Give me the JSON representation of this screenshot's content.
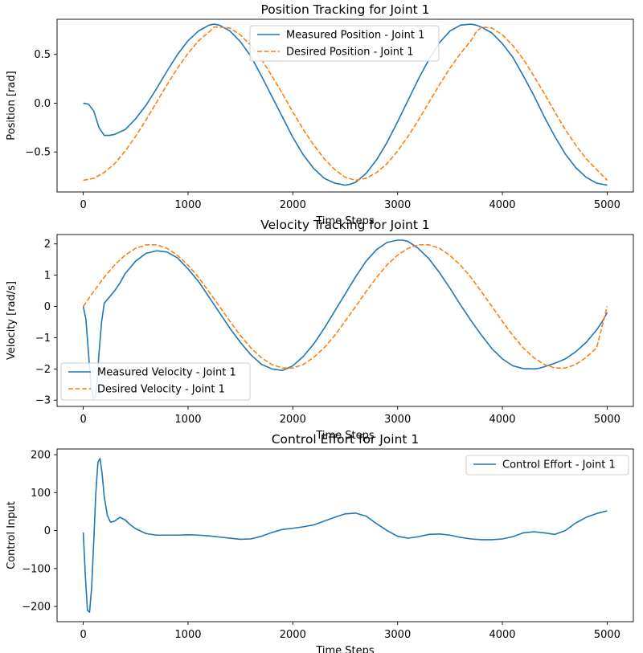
{
  "chart_data": [
    {
      "type": "line",
      "title": "Position Tracking for Joint 1",
      "xlabel": "Time Steps",
      "ylabel": "Position [rad]",
      "xlim": [
        -250,
        5250
      ],
      "ylim": [
        -0.91,
        0.86
      ],
      "xticks": [
        0,
        1000,
        2000,
        3000,
        4000,
        5000
      ],
      "xtick_labels": [
        "0",
        "1000",
        "2000",
        "3000",
        "4000",
        "5000"
      ],
      "yticks": [
        0.5,
        0.0,
        -0.5
      ],
      "ytick_labels": [
        "0.5",
        "0.0",
        "−0.5"
      ],
      "legend_loc": "upper-center",
      "series": [
        {
          "name": "Measured Position - Joint 1",
          "color": "#1f77b4",
          "style": "solid",
          "x": [
            0,
            50,
            100,
            150,
            200,
            250,
            300,
            400,
            500,
            600,
            700,
            800,
            900,
            1000,
            1100,
            1200,
            1250,
            1300,
            1400,
            1500,
            1600,
            1700,
            1800,
            1900,
            2000,
            2100,
            2200,
            2300,
            2400,
            2500,
            2550,
            2600,
            2700,
            2800,
            2900,
            3000,
            3100,
            3200,
            3300,
            3400,
            3500,
            3600,
            3700,
            3750,
            3800,
            3900,
            4000,
            4100,
            4200,
            4300,
            4400,
            4500,
            4600,
            4700,
            4800,
            4900,
            5000
          ],
          "y": [
            0.0,
            -0.01,
            -0.08,
            -0.25,
            -0.33,
            -0.33,
            -0.32,
            -0.27,
            -0.16,
            -0.02,
            0.15,
            0.33,
            0.5,
            0.64,
            0.74,
            0.8,
            0.81,
            0.8,
            0.74,
            0.63,
            0.48,
            0.28,
            0.07,
            -0.14,
            -0.35,
            -0.53,
            -0.67,
            -0.77,
            -0.82,
            -0.84,
            -0.83,
            -0.81,
            -0.72,
            -0.58,
            -0.4,
            -0.19,
            0.03,
            0.25,
            0.45,
            0.62,
            0.74,
            0.8,
            0.81,
            0.8,
            0.78,
            0.72,
            0.61,
            0.47,
            0.28,
            0.08,
            -0.14,
            -0.34,
            -0.52,
            -0.66,
            -0.76,
            -0.82,
            -0.84
          ]
        },
        {
          "name": "Desired Position - Joint 1",
          "color": "#ff7f0e",
          "style": "dashed",
          "x": [
            0,
            100,
            200,
            300,
            400,
            500,
            600,
            700,
            800,
            900,
            1000,
            1100,
            1200,
            1250,
            1300,
            1400,
            1500,
            1600,
            1700,
            1800,
            1900,
            2000,
            2100,
            2200,
            2300,
            2400,
            2500,
            2600,
            2700,
            2800,
            2900,
            3000,
            3100,
            3200,
            3300,
            3400,
            3500,
            3600,
            3700,
            3750,
            3800,
            3900,
            4000,
            4100,
            4200,
            4300,
            4400,
            4500,
            4600,
            4700,
            4800,
            4900,
            5000
          ],
          "y": [
            -0.79,
            -0.77,
            -0.71,
            -0.62,
            -0.49,
            -0.34,
            -0.17,
            0.01,
            0.19,
            0.36,
            0.51,
            0.64,
            0.73,
            0.78,
            0.78,
            0.77,
            0.7,
            0.59,
            0.45,
            0.28,
            0.1,
            -0.09,
            -0.27,
            -0.43,
            -0.57,
            -0.68,
            -0.76,
            -0.79,
            -0.77,
            -0.71,
            -0.62,
            -0.49,
            -0.34,
            -0.17,
            0.01,
            0.19,
            0.36,
            0.51,
            0.64,
            0.73,
            0.78,
            0.77,
            0.7,
            0.59,
            0.45,
            0.28,
            0.1,
            -0.09,
            -0.27,
            -0.43,
            -0.57,
            -0.68,
            -0.79
          ]
        }
      ]
    },
    {
      "type": "line",
      "title": "Velocity Tracking for Joint 1",
      "xlabel": "Time Steps",
      "ylabel": "Velocity [rad/s]",
      "xlim": [
        -250,
        5250
      ],
      "ylim": [
        -3.2,
        2.3
      ],
      "xticks": [
        0,
        1000,
        2000,
        3000,
        4000,
        5000
      ],
      "xtick_labels": [
        "0",
        "1000",
        "2000",
        "3000",
        "4000",
        "5000"
      ],
      "yticks": [
        2,
        1,
        0,
        -1,
        -2,
        -3
      ],
      "ytick_labels": [
        "2",
        "1",
        "0",
        "−1",
        "−2",
        "−3"
      ],
      "legend_loc": "lower-left",
      "series": [
        {
          "name": "Measured Velocity - Joint 1",
          "color": "#1f77b4",
          "style": "solid",
          "x": [
            0,
            25,
            50,
            75,
            100,
            115,
            130,
            150,
            175,
            200,
            250,
            300,
            350,
            400,
            500,
            600,
            700,
            800,
            900,
            1000,
            1100,
            1200,
            1300,
            1400,
            1500,
            1600,
            1700,
            1800,
            1900,
            2000,
            2100,
            2200,
            2300,
            2400,
            2500,
            2600,
            2700,
            2800,
            2900,
            3000,
            3050,
            3100,
            3200,
            3300,
            3400,
            3500,
            3600,
            3700,
            3800,
            3900,
            4000,
            4100,
            4200,
            4300,
            4350,
            4400,
            4500,
            4600,
            4700,
            4800,
            4900,
            4950,
            5000
          ],
          "y": [
            0.0,
            -0.4,
            -1.5,
            -2.6,
            -2.95,
            -2.9,
            -2.5,
            -1.5,
            -0.5,
            0.1,
            0.3,
            0.5,
            0.75,
            1.05,
            1.45,
            1.7,
            1.78,
            1.74,
            1.55,
            1.2,
            0.8,
            0.3,
            -0.2,
            -0.7,
            -1.15,
            -1.55,
            -1.85,
            -2.0,
            -2.05,
            -1.9,
            -1.6,
            -1.2,
            -0.7,
            -0.15,
            0.4,
            0.95,
            1.45,
            1.82,
            2.05,
            2.12,
            2.12,
            2.08,
            1.85,
            1.52,
            1.08,
            0.58,
            0.05,
            -0.45,
            -0.92,
            -1.35,
            -1.68,
            -1.9,
            -1.99,
            -2.0,
            -1.98,
            -1.93,
            -1.82,
            -1.68,
            -1.45,
            -1.15,
            -0.75,
            -0.5,
            -0.2
          ]
        },
        {
          "name": "Desired Velocity - Joint 1",
          "color": "#ff7f0e",
          "style": "dashed",
          "x": [
            0,
            100,
            200,
            300,
            400,
            500,
            600,
            700,
            800,
            900,
            1000,
            1100,
            1200,
            1300,
            1400,
            1500,
            1600,
            1700,
            1800,
            1900,
            2000,
            2100,
            2200,
            2300,
            2400,
            2500,
            2600,
            2700,
            2800,
            2900,
            3000,
            3100,
            3200,
            3300,
            3400,
            3500,
            3600,
            3700,
            3800,
            3900,
            4000,
            4100,
            4200,
            4300,
            4400,
            4500,
            4600,
            4700,
            4800,
            4900,
            5000
          ],
          "y": [
            0.0,
            0.48,
            0.93,
            1.33,
            1.64,
            1.86,
            1.97,
            1.97,
            1.86,
            1.63,
            1.32,
            0.93,
            0.47,
            0.0,
            -0.48,
            -0.93,
            -1.33,
            -1.64,
            -1.86,
            -1.97,
            -1.97,
            -1.86,
            -1.63,
            -1.32,
            -0.93,
            -0.47,
            0.0,
            0.48,
            0.93,
            1.33,
            1.64,
            1.86,
            1.97,
            1.97,
            1.86,
            1.63,
            1.32,
            0.93,
            0.47,
            0.0,
            -0.48,
            -0.93,
            -1.33,
            -1.64,
            -1.86,
            -1.97,
            -1.97,
            -1.86,
            -1.63,
            -1.32,
            0.0
          ]
        }
      ]
    },
    {
      "type": "line",
      "title": "Control Effort for Joint 1",
      "xlabel": "Time Steps",
      "ylabel": "Control Input",
      "xlim": [
        -250,
        5250
      ],
      "ylim": [
        -240,
        215
      ],
      "xticks": [
        0,
        1000,
        2000,
        3000,
        4000,
        5000
      ],
      "xtick_labels": [
        "0",
        "1000",
        "2000",
        "3000",
        "4000",
        "5000"
      ],
      "yticks": [
        200,
        100,
        0,
        -100,
        -200
      ],
      "ytick_labels": [
        "200",
        "100",
        "0",
        "−100",
        "−200"
      ],
      "legend_loc": "upper-right",
      "series": [
        {
          "name": "Control Effort - Joint 1",
          "color": "#1f77b4",
          "style": "solid",
          "x": [
            0,
            20,
            40,
            60,
            80,
            100,
            120,
            140,
            160,
            180,
            200,
            230,
            260,
            300,
            350,
            400,
            450,
            500,
            600,
            700,
            800,
            900,
            1000,
            1100,
            1200,
            1300,
            1400,
            1500,
            1600,
            1700,
            1800,
            1900,
            2000,
            2100,
            2200,
            2300,
            2400,
            2500,
            2600,
            2700,
            2800,
            2900,
            3000,
            3100,
            3200,
            3300,
            3400,
            3500,
            3600,
            3700,
            3800,
            3900,
            4000,
            4100,
            4200,
            4300,
            4400,
            4500,
            4600,
            4700,
            4800,
            4900,
            5000
          ],
          "y": [
            -5,
            -120,
            -210,
            -215,
            -150,
            -30,
            100,
            180,
            190,
            150,
            90,
            40,
            22,
            25,
            35,
            28,
            15,
            5,
            -8,
            -12,
            -12,
            -12,
            -11,
            -12,
            -14,
            -17,
            -20,
            -23,
            -22,
            -15,
            -5,
            3,
            6,
            10,
            15,
            25,
            35,
            44,
            46,
            38,
            18,
            0,
            -15,
            -20,
            -16,
            -10,
            -9,
            -12,
            -18,
            -22,
            -24,
            -24,
            -22,
            -16,
            -6,
            -3,
            -6,
            -10,
            0,
            20,
            35,
            45,
            52
          ]
        }
      ]
    }
  ]
}
